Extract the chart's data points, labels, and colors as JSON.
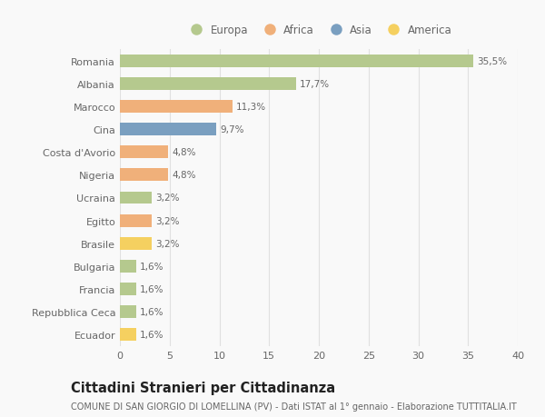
{
  "categories": [
    "Romania",
    "Albania",
    "Marocco",
    "Cina",
    "Costa d'Avorio",
    "Nigeria",
    "Ucraina",
    "Egitto",
    "Brasile",
    "Bulgaria",
    "Francia",
    "Repubblica Ceca",
    "Ecuador"
  ],
  "values": [
    35.5,
    17.7,
    11.3,
    9.7,
    4.8,
    4.8,
    3.2,
    3.2,
    3.2,
    1.6,
    1.6,
    1.6,
    1.6
  ],
  "labels": [
    "35,5%",
    "17,7%",
    "11,3%",
    "9,7%",
    "4,8%",
    "4,8%",
    "3,2%",
    "3,2%",
    "3,2%",
    "1,6%",
    "1,6%",
    "1,6%",
    "1,6%"
  ],
  "bar_colors": [
    "#b5c98e",
    "#b5c98e",
    "#f0b07a",
    "#7a9fc0",
    "#f0b07a",
    "#f0b07a",
    "#b5c98e",
    "#f0b07a",
    "#f5d060",
    "#b5c98e",
    "#b5c98e",
    "#b5c98e",
    "#f5d060"
  ],
  "continent_colors": {
    "Europa": "#b5c98e",
    "Africa": "#f0b07a",
    "Asia": "#7a9fc0",
    "America": "#f5d060"
  },
  "legend_labels": [
    "Europa",
    "Africa",
    "Asia",
    "America"
  ],
  "xlim": [
    0,
    40
  ],
  "xticks": [
    0,
    5,
    10,
    15,
    20,
    25,
    30,
    35,
    40
  ],
  "title": "Cittadini Stranieri per Cittadinanza",
  "subtitle": "COMUNE DI SAN GIORGIO DI LOMELLINA (PV) - Dati ISTAT al 1° gennaio - Elaborazione TUTTITALIA.IT",
  "bg_color": "#f9f9f9",
  "grid_color": "#e0e0e0",
  "bar_height": 0.55,
  "label_fontsize": 7.5,
  "title_fontsize": 10.5,
  "subtitle_fontsize": 7.0,
  "tick_fontsize": 8,
  "legend_fontsize": 8.5
}
